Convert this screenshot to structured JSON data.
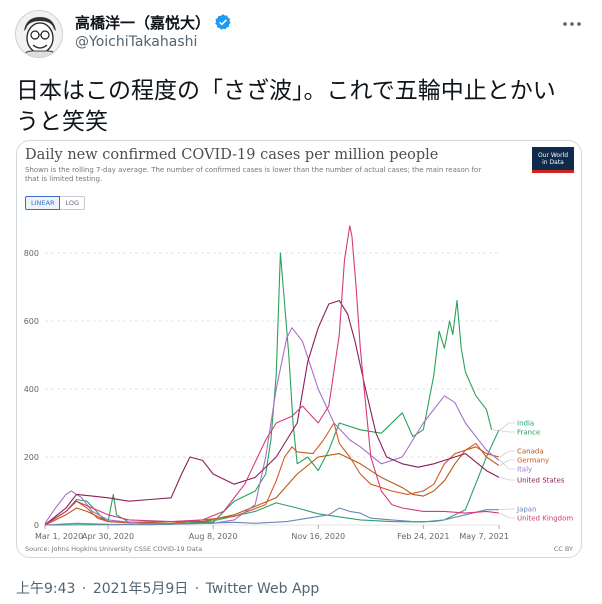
{
  "tweet": {
    "display_name": "高橋洋一（嘉悦大）",
    "handle": "@YoichiTakahashi",
    "text_line1": "日本はこの程度の「さざ波」。これで五輪中止とかい",
    "text_line2": "うと笑笑",
    "time": "上午9:43",
    "date": "2021年5月9日",
    "separator": "·",
    "source": "Twitter Web App",
    "icons": {
      "verified": "verified-badge-icon",
      "more": "more-options-icon",
      "avatar": "avatar-caricature"
    }
  },
  "chart": {
    "title": "Daily new confirmed COVID-19 cases per million people",
    "subtitle": "Shown is the rolling 7-day average. The number of confirmed cases is lower than the number of actual cases; the main reason for that is limited testing.",
    "logo_line1": "Our World",
    "logo_line2": "in Data",
    "linear_label": "LINEAR",
    "log_label": "LOG",
    "source": "Source: Johns Hopkins University CSSE COVID-19 Data",
    "license": "CC BY"
  },
  "chart_data": {
    "type": "line",
    "ylim": [
      0,
      900
    ],
    "yticks": [
      0,
      200,
      400,
      600,
      800
    ],
    "xlim": [
      0,
      432
    ],
    "xticks": [
      {
        "day": 0,
        "label": "Mar 1, 2020"
      },
      {
        "day": 60,
        "label": "Apr 30, 2020"
      },
      {
        "day": 160,
        "label": "Aug 8, 2020"
      },
      {
        "day": 260,
        "label": "Nov 16, 2020"
      },
      {
        "day": 360,
        "label": "Feb 24, 2021"
      },
      {
        "day": 432,
        "label": "May 7, 2021"
      }
    ],
    "series": [
      {
        "name": "India",
        "color": "#2e9e75",
        "points": [
          [
            0,
            0
          ],
          [
            60,
            1
          ],
          [
            120,
            2
          ],
          [
            160,
            12
          ],
          [
            200,
            40
          ],
          [
            220,
            65
          ],
          [
            240,
            50
          ],
          [
            260,
            33
          ],
          [
            300,
            15
          ],
          [
            330,
            10
          ],
          [
            360,
            9
          ],
          [
            380,
            15
          ],
          [
            400,
            45
          ],
          [
            420,
            200
          ],
          [
            432,
            280
          ]
        ]
      },
      {
        "name": "France",
        "color": "#2aa258",
        "points": [
          [
            0,
            2
          ],
          [
            20,
            40
          ],
          [
            30,
            75
          ],
          [
            40,
            70
          ],
          [
            55,
            20
          ],
          [
            60,
            10
          ],
          [
            65,
            90
          ],
          [
            68,
            30
          ],
          [
            80,
            8
          ],
          [
            120,
            4
          ],
          [
            160,
            8
          ],
          [
            180,
            70
          ],
          [
            200,
            100
          ],
          [
            210,
            150
          ],
          [
            215,
            250
          ],
          [
            220,
            440
          ],
          [
            224,
            800
          ],
          [
            228,
            650
          ],
          [
            232,
            500
          ],
          [
            236,
            300
          ],
          [
            240,
            180
          ],
          [
            250,
            200
          ],
          [
            260,
            160
          ],
          [
            270,
            220
          ],
          [
            280,
            300
          ],
          [
            300,
            280
          ],
          [
            320,
            270
          ],
          [
            340,
            330
          ],
          [
            350,
            260
          ],
          [
            360,
            280
          ],
          [
            370,
            440
          ],
          [
            375,
            570
          ],
          [
            380,
            520
          ],
          [
            385,
            600
          ],
          [
            388,
            560
          ],
          [
            392,
            660
          ],
          [
            396,
            520
          ],
          [
            400,
            450
          ],
          [
            410,
            380
          ],
          [
            420,
            340
          ],
          [
            425,
            280
          ]
        ]
      },
      {
        "name": "Canada",
        "color": "#b65a16",
        "points": [
          [
            0,
            0
          ],
          [
            20,
            30
          ],
          [
            30,
            50
          ],
          [
            40,
            40
          ],
          [
            60,
            10
          ],
          [
            80,
            8
          ],
          [
            120,
            10
          ],
          [
            150,
            10
          ],
          [
            180,
            30
          ],
          [
            220,
            80
          ],
          [
            240,
            150
          ],
          [
            260,
            200
          ],
          [
            280,
            210
          ],
          [
            300,
            180
          ],
          [
            320,
            140
          ],
          [
            340,
            110
          ],
          [
            350,
            90
          ],
          [
            360,
            85
          ],
          [
            370,
            100
          ],
          [
            380,
            130
          ],
          [
            390,
            180
          ],
          [
            400,
            220
          ],
          [
            410,
            230
          ],
          [
            420,
            210
          ],
          [
            432,
            200
          ]
        ]
      },
      {
        "name": "Germany",
        "color": "#cf5a27",
        "points": [
          [
            0,
            1
          ],
          [
            20,
            40
          ],
          [
            30,
            70
          ],
          [
            40,
            50
          ],
          [
            50,
            20
          ],
          [
            60,
            10
          ],
          [
            80,
            6
          ],
          [
            120,
            5
          ],
          [
            150,
            15
          ],
          [
            180,
            25
          ],
          [
            210,
            60
          ],
          [
            220,
            130
          ],
          [
            228,
            200
          ],
          [
            235,
            230
          ],
          [
            240,
            215
          ],
          [
            255,
            210
          ],
          [
            265,
            250
          ],
          [
            275,
            300
          ],
          [
            280,
            240
          ],
          [
            290,
            200
          ],
          [
            300,
            150
          ],
          [
            310,
            120
          ],
          [
            330,
            100
          ],
          [
            345,
            90
          ],
          [
            360,
            100
          ],
          [
            370,
            120
          ],
          [
            380,
            180
          ],
          [
            390,
            210
          ],
          [
            400,
            220
          ],
          [
            410,
            240
          ],
          [
            420,
            200
          ],
          [
            432,
            175
          ]
        ]
      },
      {
        "name": "Italy",
        "color": "#a572c8",
        "points": [
          [
            0,
            5
          ],
          [
            10,
            50
          ],
          [
            20,
            90
          ],
          [
            25,
            100
          ],
          [
            35,
            80
          ],
          [
            45,
            40
          ],
          [
            60,
            15
          ],
          [
            90,
            5
          ],
          [
            130,
            3
          ],
          [
            160,
            5
          ],
          [
            180,
            15
          ],
          [
            200,
            60
          ],
          [
            210,
            200
          ],
          [
            220,
            400
          ],
          [
            230,
            550
          ],
          [
            235,
            580
          ],
          [
            245,
            540
          ],
          [
            260,
            400
          ],
          [
            275,
            300
          ],
          [
            290,
            250
          ],
          [
            300,
            230
          ],
          [
            320,
            180
          ],
          [
            340,
            200
          ],
          [
            350,
            250
          ],
          [
            360,
            300
          ],
          [
            370,
            340
          ],
          [
            380,
            380
          ],
          [
            390,
            360
          ],
          [
            400,
            300
          ],
          [
            420,
            220
          ],
          [
            432,
            190
          ]
        ]
      },
      {
        "name": "United States",
        "color": "#8b1e59",
        "points": [
          [
            0,
            1
          ],
          [
            20,
            50
          ],
          [
            30,
            90
          ],
          [
            45,
            85
          ],
          [
            60,
            80
          ],
          [
            80,
            70
          ],
          [
            100,
            75
          ],
          [
            120,
            80
          ],
          [
            130,
            150
          ],
          [
            138,
            200
          ],
          [
            150,
            190
          ],
          [
            160,
            150
          ],
          [
            180,
            120
          ],
          [
            200,
            140
          ],
          [
            220,
            200
          ],
          [
            240,
            300
          ],
          [
            250,
            480
          ],
          [
            260,
            580
          ],
          [
            270,
            650
          ],
          [
            280,
            660
          ],
          [
            288,
            620
          ],
          [
            295,
            540
          ],
          [
            305,
            400
          ],
          [
            315,
            270
          ],
          [
            325,
            200
          ],
          [
            340,
            180
          ],
          [
            355,
            170
          ],
          [
            370,
            180
          ],
          [
            380,
            190
          ],
          [
            400,
            210
          ],
          [
            420,
            160
          ],
          [
            432,
            140
          ]
        ]
      },
      {
        "name": "Japan",
        "color": "#6d87b7",
        "points": [
          [
            0,
            0
          ],
          [
            30,
            5
          ],
          [
            60,
            2
          ],
          [
            100,
            1
          ],
          [
            150,
            5
          ],
          [
            180,
            8
          ],
          [
            200,
            5
          ],
          [
            230,
            10
          ],
          [
            250,
            20
          ],
          [
            270,
            30
          ],
          [
            280,
            50
          ],
          [
            290,
            40
          ],
          [
            300,
            35
          ],
          [
            310,
            20
          ],
          [
            330,
            15
          ],
          [
            350,
            10
          ],
          [
            370,
            10
          ],
          [
            380,
            15
          ],
          [
            400,
            30
          ],
          [
            420,
            45
          ],
          [
            432,
            45
          ]
        ]
      },
      {
        "name": "United Kingdom",
        "color": "#d63a7a",
        "points": [
          [
            0,
            0
          ],
          [
            20,
            40
          ],
          [
            30,
            70
          ],
          [
            45,
            50
          ],
          [
            60,
            30
          ],
          [
            80,
            15
          ],
          [
            120,
            10
          ],
          [
            150,
            15
          ],
          [
            170,
            40
          ],
          [
            190,
            120
          ],
          [
            210,
            250
          ],
          [
            220,
            300
          ],
          [
            235,
            320
          ],
          [
            245,
            350
          ],
          [
            260,
            300
          ],
          [
            270,
            350
          ],
          [
            280,
            560
          ],
          [
            285,
            780
          ],
          [
            290,
            880
          ],
          [
            292,
            850
          ],
          [
            296,
            700
          ],
          [
            300,
            520
          ],
          [
            305,
            360
          ],
          [
            310,
            200
          ],
          [
            320,
            100
          ],
          [
            330,
            60
          ],
          [
            340,
            50
          ],
          [
            360,
            40
          ],
          [
            380,
            40
          ],
          [
            400,
            35
          ],
          [
            420,
            40
          ],
          [
            432,
            35
          ]
        ]
      }
    ]
  }
}
